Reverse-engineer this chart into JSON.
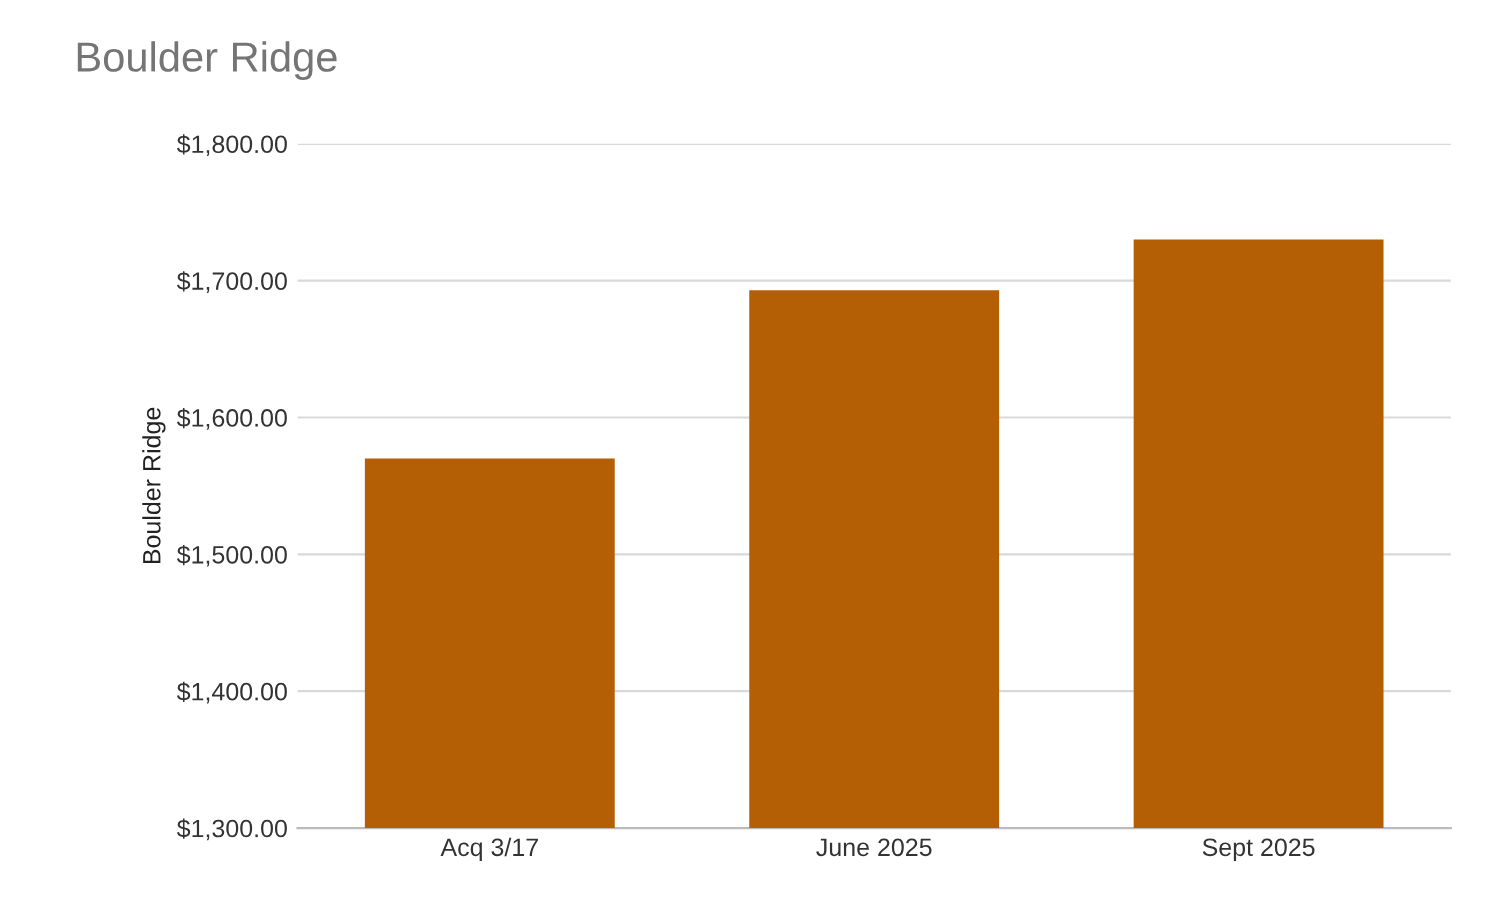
{
  "chart_data": {
    "type": "bar",
    "title": "Boulder Ridge",
    "ylabel": "Boulder Ridge",
    "categories": [
      "Acq 3/17",
      "June 2025",
      "Sept 2025"
    ],
    "values": [
      1570,
      1693,
      1730
    ],
    "color": "#b45f06",
    "ylim": [
      1300,
      1800
    ],
    "yticks": [
      {
        "value": 1300,
        "label": "$1,300.00"
      },
      {
        "value": 1400,
        "label": "$1,400.00"
      },
      {
        "value": 1500,
        "label": "$1,500.00"
      },
      {
        "value": 1600,
        "label": "$1,600.00"
      },
      {
        "value": 1700,
        "label": "$1,700.00"
      },
      {
        "value": 1800,
        "label": "$1,800.00"
      }
    ],
    "grid": "y",
    "legend": false
  }
}
